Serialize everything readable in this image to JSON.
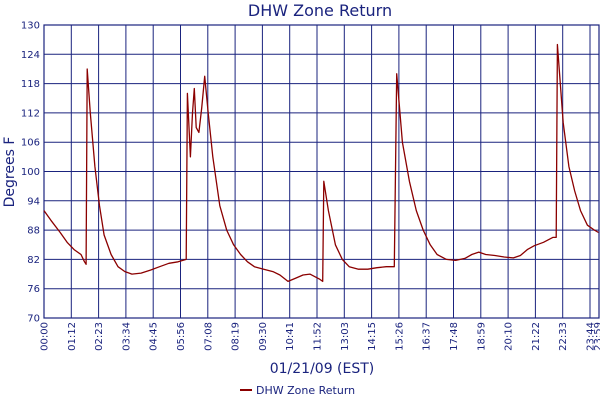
{
  "chart_data": {
    "type": "line",
    "title": "DHW Zone Return",
    "xlabel": "01/21/09 (EST)",
    "ylabel": "Degrees F",
    "ylim": [
      70,
      130
    ],
    "y_ticks": [
      70,
      76,
      82,
      88,
      94,
      100,
      106,
      112,
      118,
      124,
      130
    ],
    "x_ticks": [
      "00:00",
      "01:12",
      "02:23",
      "03:34",
      "04:45",
      "05:56",
      "07:08",
      "08:19",
      "09:30",
      "10:41",
      "11:52",
      "13:03",
      "14:15",
      "15:26",
      "16:37",
      "17:48",
      "18:59",
      "20:10",
      "21:22",
      "22:33",
      "23:44"
    ],
    "x_extra_tick": "23:59",
    "grid": true,
    "legend_position": "bottom",
    "line_color": "#8b0000",
    "grid_color": "#1a237e",
    "series": [
      {
        "name": "DHW Zone Return",
        "points": [
          [
            0,
            92
          ],
          [
            0.3,
            90
          ],
          [
            0.7,
            87.5
          ],
          [
            1.0,
            85.5
          ],
          [
            1.3,
            84
          ],
          [
            1.6,
            83
          ],
          [
            1.75,
            81.5
          ],
          [
            1.82,
            81
          ],
          [
            1.87,
            121
          ],
          [
            2.0,
            112
          ],
          [
            2.2,
            101
          ],
          [
            2.4,
            93
          ],
          [
            2.6,
            87
          ],
          [
            2.9,
            83
          ],
          [
            3.2,
            80.5
          ],
          [
            3.5,
            79.5
          ],
          [
            3.8,
            79
          ],
          [
            4.2,
            79.2
          ],
          [
            4.6,
            79.8
          ],
          [
            5.0,
            80.5
          ],
          [
            5.4,
            81.2
          ],
          [
            5.8,
            81.5
          ],
          [
            6.15,
            82
          ],
          [
            6.2,
            116
          ],
          [
            6.33,
            103
          ],
          [
            6.42,
            112
          ],
          [
            6.5,
            117
          ],
          [
            6.58,
            109
          ],
          [
            6.7,
            108
          ],
          [
            6.82,
            113
          ],
          [
            6.95,
            119.5
          ],
          [
            7.1,
            112
          ],
          [
            7.3,
            103
          ],
          [
            7.6,
            93
          ],
          [
            7.9,
            88
          ],
          [
            8.2,
            85
          ],
          [
            8.5,
            83
          ],
          [
            8.8,
            81.5
          ],
          [
            9.1,
            80.5
          ],
          [
            9.5,
            80
          ],
          [
            9.9,
            79.5
          ],
          [
            10.2,
            78.8
          ],
          [
            10.55,
            77.5
          ],
          [
            10.9,
            78.2
          ],
          [
            11.2,
            78.8
          ],
          [
            11.5,
            79
          ],
          [
            11.9,
            78
          ],
          [
            12.05,
            77.5
          ],
          [
            12.1,
            98
          ],
          [
            12.3,
            92
          ],
          [
            12.6,
            85
          ],
          [
            12.9,
            82
          ],
          [
            13.2,
            80.5
          ],
          [
            13.6,
            80
          ],
          [
            14.0,
            80
          ],
          [
            14.4,
            80.3
          ],
          [
            14.8,
            80.5
          ],
          [
            15.15,
            80.5
          ],
          [
            15.25,
            120
          ],
          [
            15.5,
            106
          ],
          [
            15.8,
            98
          ],
          [
            16.1,
            92
          ],
          [
            16.4,
            88
          ],
          [
            16.7,
            85
          ],
          [
            17.0,
            83
          ],
          [
            17.4,
            82
          ],
          [
            17.8,
            81.8
          ],
          [
            18.2,
            82.2
          ],
          [
            18.5,
            83
          ],
          [
            18.8,
            83.5
          ],
          [
            19.1,
            83
          ],
          [
            19.5,
            82.8
          ],
          [
            19.9,
            82.5
          ],
          [
            20.3,
            82.3
          ],
          [
            20.6,
            82.8
          ],
          [
            20.9,
            84
          ],
          [
            21.2,
            84.8
          ],
          [
            21.6,
            85.5
          ],
          [
            22.0,
            86.5
          ],
          [
            22.15,
            86.5
          ],
          [
            22.2,
            126
          ],
          [
            22.45,
            110
          ],
          [
            22.7,
            101
          ],
          [
            22.95,
            96
          ],
          [
            23.2,
            92
          ],
          [
            23.5,
            89
          ],
          [
            23.8,
            88
          ],
          [
            23.98,
            87.5
          ]
        ]
      }
    ]
  }
}
